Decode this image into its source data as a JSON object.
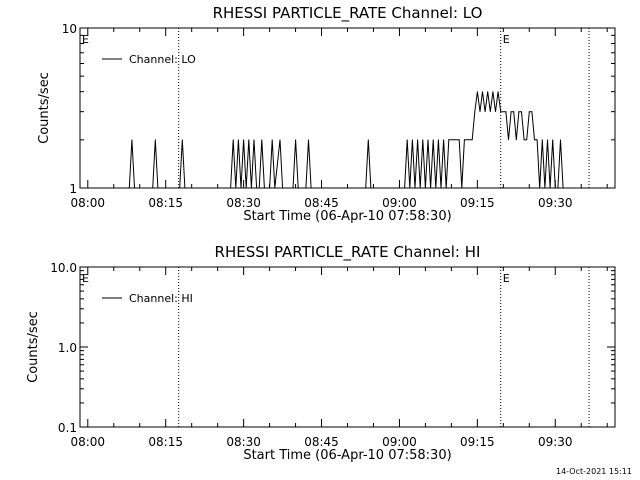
{
  "footer": {
    "timestamp": "14-Oct-2021 15:11"
  },
  "chart_data": [
    {
      "type": "line",
      "title": "RHESSI PARTICLE_RATE Channel: LO",
      "xlabel": "Start Time (06-Apr-10 07:58:30)",
      "ylabel": "Counts/sec",
      "yscale": "log",
      "ylim": [
        1,
        10
      ],
      "ytick_labels": [
        "1",
        "10"
      ],
      "ytick_values": [
        1,
        10
      ],
      "xlim_minutes": [
        -1.5,
        101.5
      ],
      "xtick_labels": [
        "08:00",
        "08:15",
        "08:30",
        "08:45",
        "09:00",
        "09:15",
        "09:30"
      ],
      "xtick_minutes": [
        0,
        15,
        30,
        45,
        60,
        75,
        90
      ],
      "legend": {
        "label": "Channel: LO",
        "location": "top-left"
      },
      "vlines_minutes": [
        17.5,
        79.5,
        96.5
      ],
      "markers": [
        {
          "label": "E",
          "minute": -1.5
        },
        {
          "label": "E",
          "minute": 79.5
        }
      ],
      "series": [
        {
          "name": "Channel: LO",
          "points": [
            [
              -1.5,
              1
            ],
            [
              8,
              1
            ],
            [
              8.5,
              2
            ],
            [
              9,
              1
            ],
            [
              12.5,
              1
            ],
            [
              13,
              2
            ],
            [
              13.5,
              1
            ],
            [
              17.7,
              1
            ],
            [
              18.2,
              2
            ],
            [
              18.7,
              1
            ],
            [
              27.5,
              1
            ],
            [
              28,
              2
            ],
            [
              28.5,
              1
            ],
            [
              29,
              2
            ],
            [
              29.5,
              1
            ],
            [
              30,
              2
            ],
            [
              30.5,
              1
            ],
            [
              31,
              2
            ],
            [
              31.5,
              1
            ],
            [
              32,
              2
            ],
            [
              32.5,
              1
            ],
            [
              33,
              1
            ],
            [
              33.5,
              2
            ],
            [
              34,
              1
            ],
            [
              35,
              1
            ],
            [
              35.5,
              2
            ],
            [
              36,
              1
            ],
            [
              37,
              2
            ],
            [
              37.5,
              1
            ],
            [
              39.5,
              1
            ],
            [
              40,
              2
            ],
            [
              40.5,
              1
            ],
            [
              42,
              1
            ],
            [
              42.5,
              2
            ],
            [
              43,
              1
            ],
            [
              53.5,
              1
            ],
            [
              54,
              2
            ],
            [
              54.5,
              1
            ],
            [
              61,
              1
            ],
            [
              61.5,
              2
            ],
            [
              62,
              1
            ],
            [
              62.5,
              2
            ],
            [
              63,
              1
            ],
            [
              63.5,
              2
            ],
            [
              64,
              1
            ],
            [
              64.5,
              2
            ],
            [
              65,
              1
            ],
            [
              65.5,
              2
            ],
            [
              66,
              1
            ],
            [
              66.5,
              2
            ],
            [
              67,
              1
            ],
            [
              67.5,
              2
            ],
            [
              68,
              1
            ],
            [
              68.5,
              2
            ],
            [
              69,
              1
            ],
            [
              69.5,
              2
            ],
            [
              71.5,
              2
            ],
            [
              72,
              1
            ],
            [
              72.5,
              2
            ],
            [
              74,
              2
            ],
            [
              74.5,
              3
            ],
            [
              75,
              4
            ],
            [
              75.5,
              3
            ],
            [
              76,
              4
            ],
            [
              76.5,
              3
            ],
            [
              77,
              4
            ],
            [
              77.5,
              3
            ],
            [
              78,
              4
            ],
            [
              78.5,
              3
            ],
            [
              79,
              4
            ],
            [
              79.5,
              3
            ],
            [
              80.5,
              3
            ],
            [
              81,
              2
            ],
            [
              81.5,
              3
            ],
            [
              82,
              3
            ],
            [
              82.5,
              2
            ],
            [
              83,
              3
            ],
            [
              83.5,
              3
            ],
            [
              84,
              2
            ],
            [
              84.5,
              2
            ],
            [
              85,
              3
            ],
            [
              85.5,
              3
            ],
            [
              86,
              2
            ],
            [
              86.5,
              2
            ],
            [
              87,
              1
            ],
            [
              87.5,
              2
            ],
            [
              88,
              1
            ],
            [
              88.5,
              2
            ],
            [
              89,
              1
            ],
            [
              89.5,
              2
            ],
            [
              90,
              1
            ],
            [
              90.5,
              1
            ],
            [
              91,
              2
            ],
            [
              91.5,
              1
            ]
          ]
        }
      ]
    },
    {
      "type": "line",
      "title": "RHESSI PARTICLE_RATE Channel: HI",
      "xlabel": "Start Time (06-Apr-10 07:58:30)",
      "ylabel": "Counts/sec",
      "yscale": "log",
      "ylim": [
        0.1,
        10
      ],
      "ytick_labels": [
        "0.1",
        "1.0",
        "10.0"
      ],
      "ytick_values": [
        0.1,
        1,
        10
      ],
      "xlim_minutes": [
        -1.5,
        101.5
      ],
      "xtick_labels": [
        "08:00",
        "08:15",
        "08:30",
        "08:45",
        "09:00",
        "09:15",
        "09:30"
      ],
      "xtick_minutes": [
        0,
        15,
        30,
        45,
        60,
        75,
        90
      ],
      "legend": {
        "label": "Channel: HI",
        "location": "top-left"
      },
      "vlines_minutes": [
        17.5,
        79.5,
        96.5
      ],
      "markers": [
        {
          "label": "E",
          "minute": -1.5
        },
        {
          "label": "E",
          "minute": 79.5
        }
      ],
      "series": [
        {
          "name": "Channel: HI",
          "points": []
        }
      ]
    }
  ]
}
